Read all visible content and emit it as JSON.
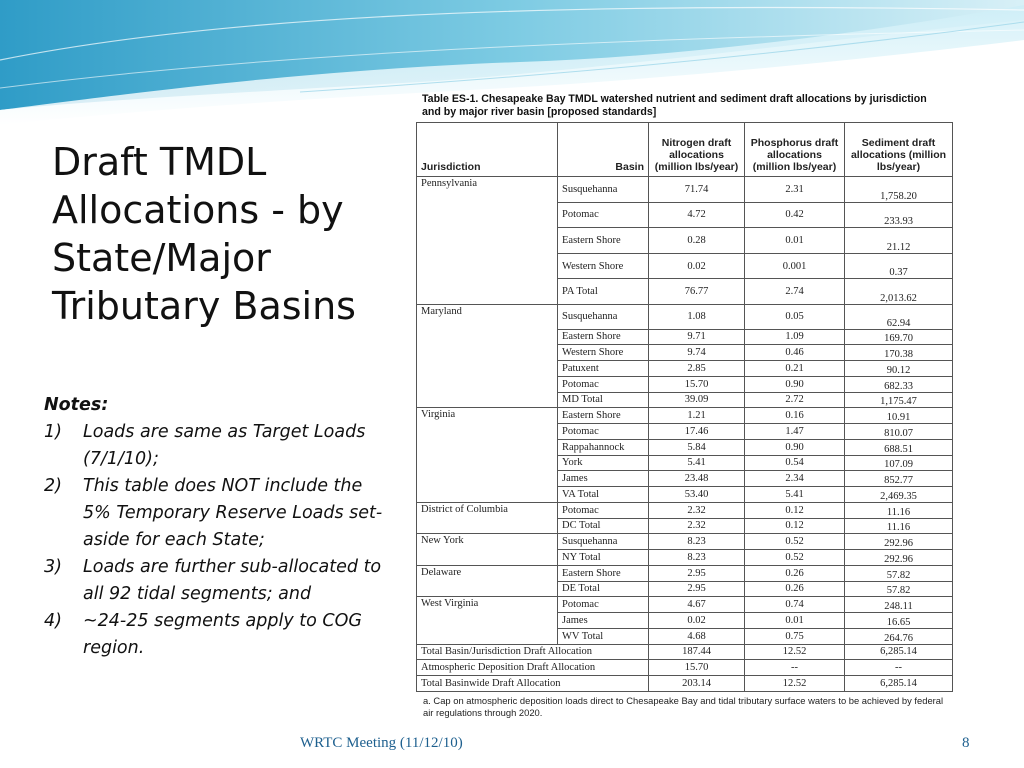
{
  "slide": {
    "title": "Draft TMDL Allocations - by State/Major Tributary Basins",
    "notes_heading": "Notes:",
    "notes": [
      {
        "num": "1)",
        "text": "Loads are same as Target Loads (7/1/10);"
      },
      {
        "num": "2)",
        "text": "This table does NOT include the 5% Temporary Reserve Loads set-aside for each State;"
      },
      {
        "num": "3)",
        "text": "Loads are further sub-allocated to all 92 tidal segments; and"
      },
      {
        "num": "4)",
        "text": "~24-25 segments apply to COG region."
      }
    ],
    "footer": "WRTC Meeting  (11/12/10)",
    "page_number": "8"
  },
  "table": {
    "caption": "Table ES-1. Chesapeake Bay TMDL watershed nutrient and sediment draft allocations by jurisdiction and by major river basin [proposed standards]",
    "headers": {
      "jurisdiction": "Jurisdiction",
      "basin": "Basin",
      "nitrogen": "Nitrogen draft allocations (million lbs/year)",
      "phosphorus": "Phosphorus draft allocations (million lbs/year)",
      "sediment": "Sediment draft allocations (million lbs/year)"
    },
    "groups": [
      {
        "jurisdiction": "Pennsylvania",
        "rows": [
          {
            "basin": "Susquehanna",
            "n": "71.74",
            "p": "2.31",
            "s": "1,758.20"
          },
          {
            "basin": "Potomac",
            "n": "4.72",
            "p": "0.42",
            "s": "233.93"
          },
          {
            "basin": "Eastern Shore",
            "n": "0.28",
            "p": "0.01",
            "s": "21.12"
          },
          {
            "basin": "Western Shore",
            "n": "0.02",
            "p": "0.001",
            "s": "0.37"
          },
          {
            "basin": "PA Total",
            "n": "76.77",
            "p": "2.74",
            "s": "2,013.62"
          }
        ]
      },
      {
        "jurisdiction": "Maryland",
        "rows": [
          {
            "basin": "Susquehanna",
            "n": "1.08",
            "p": "0.05",
            "s": "62.94"
          },
          {
            "basin": "Eastern Shore",
            "n": "9.71",
            "p": "1.09",
            "s": "169.70"
          },
          {
            "basin": "Western Shore",
            "n": "9.74",
            "p": "0.46",
            "s": "170.38"
          },
          {
            "basin": "Patuxent",
            "n": "2.85",
            "p": "0.21",
            "s": "90.12"
          },
          {
            "basin": "Potomac",
            "n": "15.70",
            "p": "0.90",
            "s": "682.33"
          },
          {
            "basin": "MD Total",
            "n": "39.09",
            "p": "2.72",
            "s": "1,175.47"
          }
        ]
      },
      {
        "jurisdiction": "Virginia",
        "rows": [
          {
            "basin": "Eastern Shore",
            "n": "1.21",
            "p": "0.16",
            "s": "10.91"
          },
          {
            "basin": "Potomac",
            "n": "17.46",
            "p": "1.47",
            "s": "810.07"
          },
          {
            "basin": "Rappahannock",
            "n": "5.84",
            "p": "0.90",
            "s": "688.51"
          },
          {
            "basin": "York",
            "n": "5.41",
            "p": "0.54",
            "s": "107.09"
          },
          {
            "basin": "James",
            "n": "23.48",
            "p": "2.34",
            "s": "852.77"
          },
          {
            "basin": "VA Total",
            "n": "53.40",
            "p": "5.41",
            "s": "2,469.35"
          }
        ]
      },
      {
        "jurisdiction": "District of Columbia",
        "rows": [
          {
            "basin": "Potomac",
            "n": "2.32",
            "p": "0.12",
            "s": "11.16"
          },
          {
            "basin": "DC Total",
            "n": "2.32",
            "p": "0.12",
            "s": "11.16"
          }
        ]
      },
      {
        "jurisdiction": "New York",
        "rows": [
          {
            "basin": "Susquehanna",
            "n": "8.23",
            "p": "0.52",
            "s": "292.96"
          },
          {
            "basin": "NY Total",
            "n": "8.23",
            "p": "0.52",
            "s": "292.96"
          }
        ]
      },
      {
        "jurisdiction": "Delaware",
        "rows": [
          {
            "basin": "Eastern Shore",
            "n": "2.95",
            "p": "0.26",
            "s": "57.82"
          },
          {
            "basin": "DE Total",
            "n": "2.95",
            "p": "0.26",
            "s": "57.82"
          }
        ]
      },
      {
        "jurisdiction": "West Virginia",
        "rows": [
          {
            "basin": "Potomac",
            "n": "4.67",
            "p": "0.74",
            "s": "248.11"
          },
          {
            "basin": "James",
            "n": "0.02",
            "p": "0.01",
            "s": "16.65"
          },
          {
            "basin": "WV Total",
            "n": "4.68",
            "p": "0.75",
            "s": "264.76"
          }
        ]
      }
    ],
    "totals": [
      {
        "label": "Total Basin/Jurisdiction Draft Allocation",
        "n": "187.44",
        "p": "12.52",
        "s": "6,285.14"
      },
      {
        "label": "Atmospheric Deposition Draft Allocation",
        "n": "15.70",
        "p": "--",
        "s": "--"
      },
      {
        "label": "Total Basinwide Draft Allocation",
        "n": "203.14",
        "p": "12.52",
        "s": "6,285.14"
      }
    ],
    "footnote": "a. Cap on atmospheric deposition loads direct to Chesapeake Bay and tidal tributary surface waters to be achieved by federal air regulations through 2020."
  },
  "colors": {
    "footer_text": "#1d5f8e",
    "wave_dark": "#3ea8cf",
    "wave_light": "#bfe6f2"
  }
}
